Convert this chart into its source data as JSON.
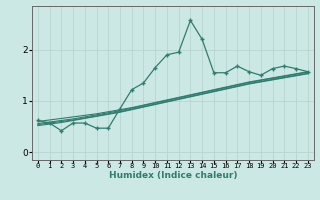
{
  "x": [
    0,
    1,
    2,
    3,
    4,
    5,
    6,
    7,
    8,
    9,
    10,
    11,
    12,
    13,
    14,
    15,
    16,
    17,
    18,
    19,
    20,
    21,
    22,
    23
  ],
  "y_main": [
    0.62,
    0.57,
    0.42,
    0.57,
    0.57,
    0.47,
    0.47,
    0.85,
    1.22,
    1.35,
    1.65,
    1.9,
    1.95,
    2.57,
    2.2,
    1.55,
    1.55,
    1.68,
    1.57,
    1.5,
    1.63,
    1.68,
    1.63,
    1.57
  ],
  "y_line1": [
    0.6,
    0.63,
    0.66,
    0.69,
    0.72,
    0.75,
    0.79,
    0.83,
    0.87,
    0.92,
    0.97,
    1.02,
    1.07,
    1.12,
    1.17,
    1.22,
    1.27,
    1.32,
    1.37,
    1.41,
    1.45,
    1.49,
    1.53,
    1.57
  ],
  "y_line2": [
    0.52,
    0.55,
    0.58,
    0.62,
    0.66,
    0.7,
    0.74,
    0.78,
    0.83,
    0.88,
    0.93,
    0.98,
    1.03,
    1.08,
    1.13,
    1.18,
    1.23,
    1.28,
    1.33,
    1.37,
    1.41,
    1.45,
    1.49,
    1.53
  ],
  "y_line3": [
    0.56,
    0.59,
    0.62,
    0.65,
    0.69,
    0.73,
    0.77,
    0.81,
    0.86,
    0.91,
    0.96,
    1.01,
    1.06,
    1.11,
    1.16,
    1.21,
    1.26,
    1.31,
    1.36,
    1.4,
    1.44,
    1.48,
    1.52,
    1.56
  ],
  "y_line4": [
    0.54,
    0.57,
    0.6,
    0.63,
    0.67,
    0.71,
    0.75,
    0.79,
    0.84,
    0.89,
    0.94,
    0.99,
    1.04,
    1.09,
    1.14,
    1.19,
    1.24,
    1.29,
    1.34,
    1.38,
    1.42,
    1.46,
    1.5,
    1.54
  ],
  "line_color": "#2e7d6e",
  "bg_color": "#cce8e4",
  "grid_color": "#b8d4d0",
  "xlabel": "Humidex (Indice chaleur)",
  "ylim": [
    -0.15,
    2.85
  ],
  "xlim": [
    -0.5,
    23.5
  ],
  "yticks": [
    0,
    1,
    2
  ],
  "xticks": [
    0,
    1,
    2,
    3,
    4,
    5,
    6,
    7,
    8,
    9,
    10,
    11,
    12,
    13,
    14,
    15,
    16,
    17,
    18,
    19,
    20,
    21,
    22,
    23
  ]
}
